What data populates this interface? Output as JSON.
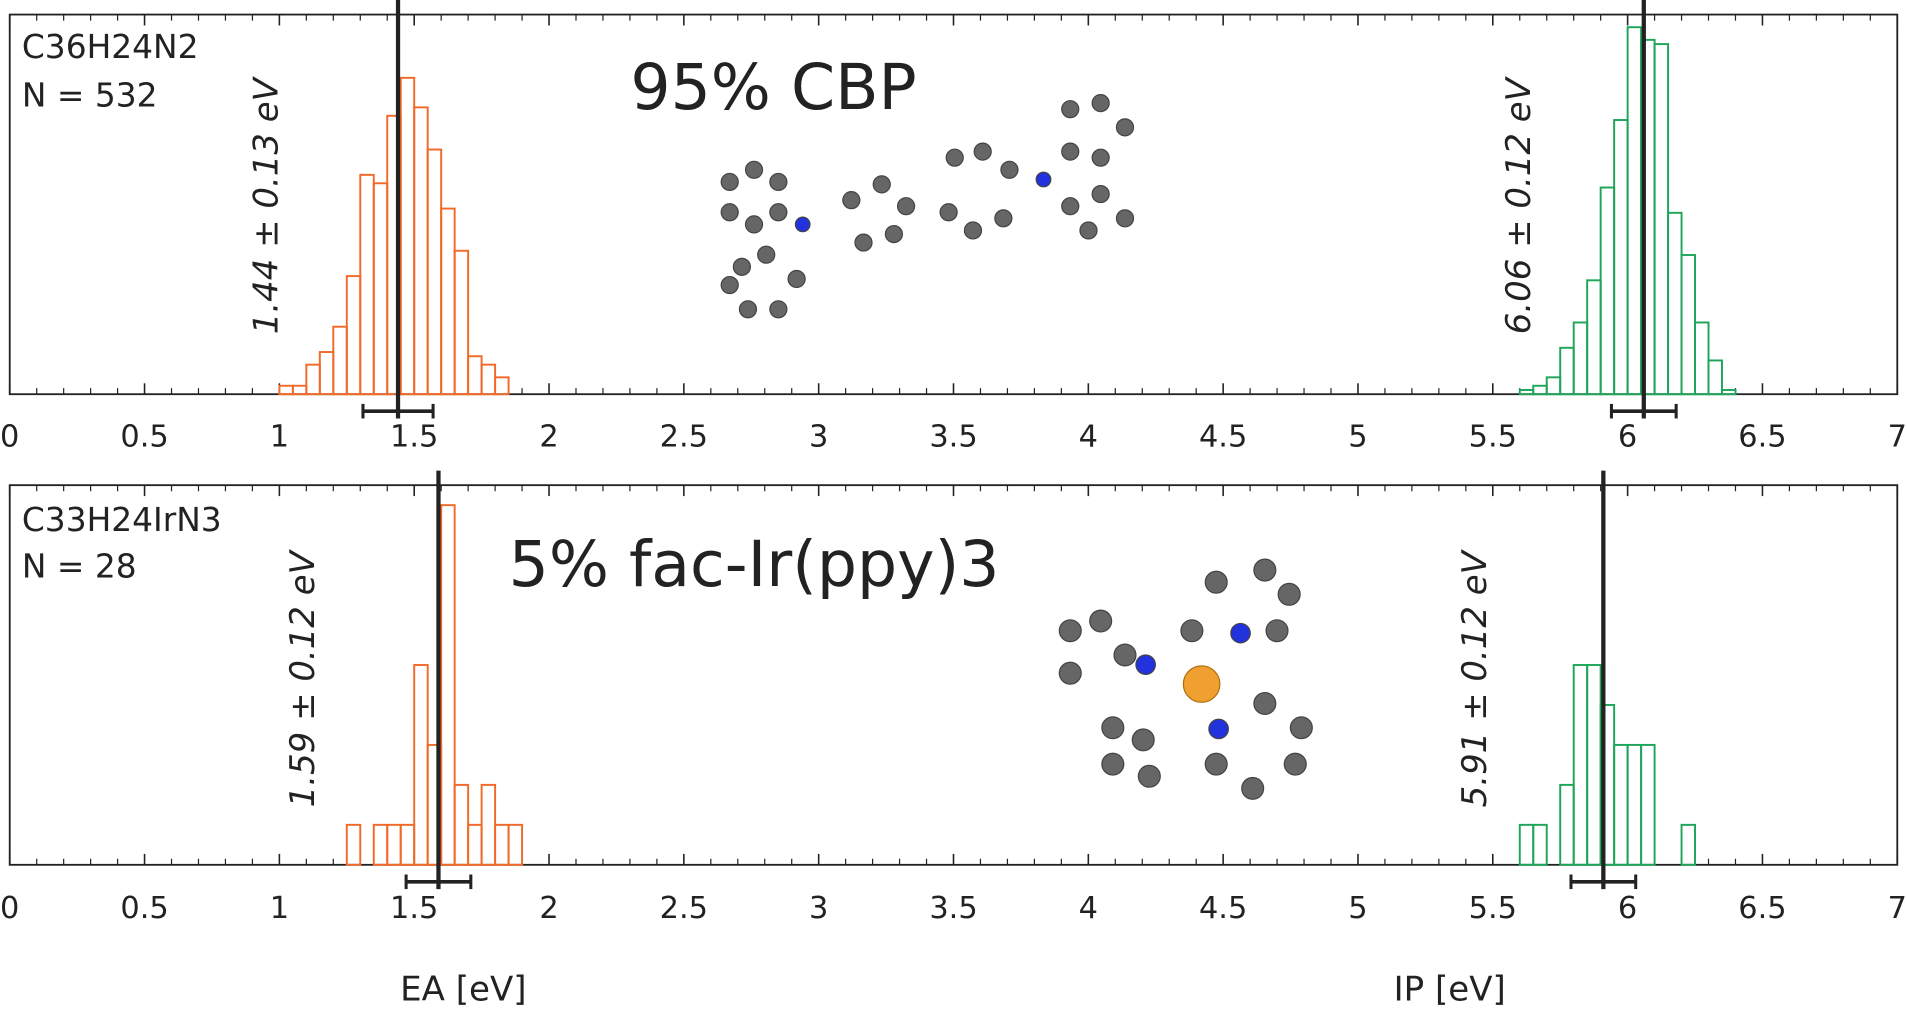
{
  "chart_data": [
    {
      "type": "histogram",
      "formula": "C36H24N2",
      "count_label": "N = 532",
      "title": "95% CBP",
      "xlim": [
        0,
        7
      ],
      "xticks": [
        0,
        0.5,
        1,
        1.5,
        2,
        2.5,
        3,
        3.5,
        4,
        4.5,
        5,
        5.5,
        6,
        6.5,
        7
      ],
      "ylim": [
        0,
        90
      ],
      "histograms": [
        {
          "color": "#f26a2a",
          "bins": [
            1.0,
            1.05,
            1.1,
            1.15,
            1.2,
            1.25,
            1.3,
            1.35,
            1.4,
            1.45,
            1.5,
            1.55,
            1.6,
            1.65,
            1.7,
            1.75,
            1.8,
            1.85
          ],
          "values": [
            2,
            2,
            7,
            10,
            16,
            28,
            52,
            50,
            66,
            75,
            68,
            58,
            44,
            34,
            9,
            7,
            4
          ],
          "mean": 1.44,
          "std": 0.13,
          "label": "1.44 ± 0.13 eV"
        },
        {
          "color": "#1fa55a",
          "bins": [
            5.6,
            5.65,
            5.7,
            5.75,
            5.8,
            5.85,
            5.9,
            5.95,
            6.0,
            6.05,
            6.1,
            6.15,
            6.2,
            6.25,
            6.3,
            6.35,
            6.4
          ],
          "values": [
            1,
            2,
            4,
            11,
            17,
            27,
            49,
            65,
            87,
            84,
            83,
            43,
            33,
            17,
            8,
            1
          ],
          "mean": 6.06,
          "std": 0.12,
          "label": "6.06 ± 0.12 eV"
        }
      ]
    },
    {
      "type": "histogram",
      "formula": "C33H24IrN3",
      "count_label": "N = 28",
      "title": "5% fac-Ir(ppy)3",
      "xlim": [
        0,
        7
      ],
      "xticks": [
        0,
        0.5,
        1,
        1.5,
        2,
        2.5,
        3,
        3.5,
        4,
        4.5,
        5,
        5.5,
        6,
        6.5,
        7
      ],
      "ylim": [
        0,
        9.5
      ],
      "histograms": [
        {
          "color": "#f26a2a",
          "bins": [
            1.25,
            1.3,
            1.35,
            1.4,
            1.45,
            1.5,
            1.55,
            1.6,
            1.65,
            1.7,
            1.75,
            1.8,
            1.85,
            1.9
          ],
          "values": [
            1,
            0,
            1,
            1,
            1,
            5,
            3,
            9,
            2,
            1,
            2,
            1,
            1
          ],
          "mean": 1.59,
          "std": 0.12,
          "label": "1.59 ± 0.12 eV"
        },
        {
          "color": "#1fa55a",
          "bins": [
            5.6,
            5.65,
            5.7,
            5.75,
            5.8,
            5.85,
            5.9,
            5.95,
            6.0,
            6.05,
            6.1,
            6.15,
            6.2,
            6.25
          ],
          "values": [
            1,
            1,
            0,
            2,
            5,
            5,
            4,
            3,
            3,
            3,
            0,
            0,
            1
          ],
          "mean": 5.91,
          "std": 0.12,
          "label": "5.91 ± 0.12 eV"
        }
      ],
      "xlabels": [
        "EA [eV]",
        "IP [eV]"
      ]
    }
  ]
}
